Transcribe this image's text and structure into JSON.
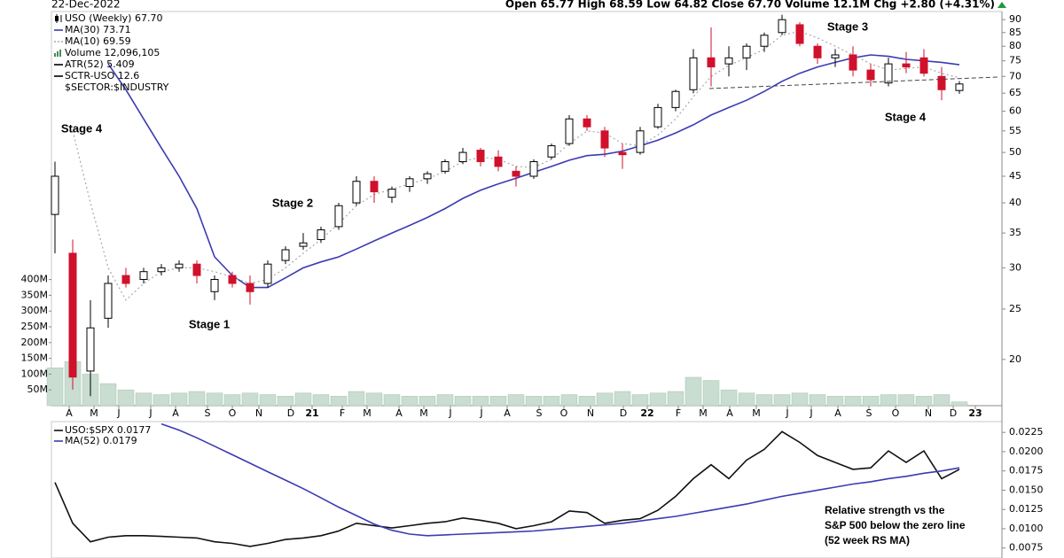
{
  "header": {
    "date": "22-Dec-2022",
    "quote": "Open 65.77 High 68.59 Low 64.82 Close 67.70 Volume 12.1M Chg +2.80 (+4.31%)"
  },
  "chart_data": [
    {
      "type": "candlestick",
      "name": "USO (Weekly) 67.70",
      "log_scale": true,
      "up_color": "#000000",
      "down_color": "#d0112b",
      "ylim": [
        16.3,
        93.3
      ],
      "yticks": [
        20,
        25,
        30,
        35,
        40,
        45,
        50,
        55,
        60,
        65,
        70,
        75,
        80,
        85,
        90
      ],
      "xlim": [
        -0.2,
        53.4
      ],
      "xticks": [
        {
          "value": 0.8,
          "label": "A"
        },
        {
          "value": 2.2,
          "label": "M"
        },
        {
          "value": 3.6,
          "label": "J"
        },
        {
          "value": 5.4,
          "label": "J"
        },
        {
          "value": 6.8,
          "label": "A"
        },
        {
          "value": 8.6,
          "label": "S"
        },
        {
          "value": 10,
          "label": "O"
        },
        {
          "value": 11.5,
          "label": "N"
        },
        {
          "value": 13.3,
          "label": "D"
        },
        {
          "value": 14.5,
          "label": "21"
        },
        {
          "value": 16.2,
          "label": "F"
        },
        {
          "value": 17.6,
          "label": "M"
        },
        {
          "value": 19.4,
          "label": "A"
        },
        {
          "value": 20.8,
          "label": "M"
        },
        {
          "value": 22.3,
          "label": "J"
        },
        {
          "value": 24.05,
          "label": "J"
        },
        {
          "value": 25.5,
          "label": "A"
        },
        {
          "value": 27.3,
          "label": "S"
        },
        {
          "value": 28.7,
          "label": "O"
        },
        {
          "value": 30.2,
          "label": "N"
        },
        {
          "value": 32.05,
          "label": "D"
        },
        {
          "value": 33.4,
          "label": "22"
        },
        {
          "value": 35.15,
          "label": "F"
        },
        {
          "value": 36.55,
          "label": "M"
        },
        {
          "value": 38.05,
          "label": "A"
        },
        {
          "value": 39.55,
          "label": "M"
        },
        {
          "value": 41.3,
          "label": "J"
        },
        {
          "value": 42.65,
          "label": "J"
        },
        {
          "value": 44.15,
          "label": "A"
        },
        {
          "value": 45.9,
          "label": "S"
        },
        {
          "value": 47.4,
          "label": "O"
        },
        {
          "value": 49.25,
          "label": "N"
        },
        {
          "value": 50.65,
          "label": "D"
        },
        {
          "value": 51.9,
          "label": "23"
        }
      ],
      "open": [
        38,
        32,
        19,
        24,
        29,
        28.5,
        29.5,
        30,
        30.5,
        27,
        29,
        28,
        28,
        31,
        33,
        34,
        36,
        40,
        44,
        41,
        43,
        44.5,
        46,
        48,
        50.5,
        49,
        46,
        45,
        49,
        52,
        58,
        55,
        50,
        50,
        56,
        61,
        66,
        76,
        74,
        76,
        80,
        85,
        88,
        80,
        76,
        77,
        72,
        68,
        74,
        76,
        70,
        65.77
      ],
      "high": [
        48,
        34,
        26,
        29,
        30,
        30,
        30.5,
        31,
        31,
        29,
        29.5,
        29,
        31,
        33,
        35,
        36,
        40,
        45,
        45,
        43,
        45,
        46,
        48.5,
        51,
        51,
        50.5,
        47,
        48.5,
        52,
        59,
        59,
        56,
        52,
        56,
        62,
        66,
        79,
        87,
        80,
        81,
        85,
        92,
        89,
        81,
        79,
        80,
        74,
        76,
        78,
        79,
        73,
        68.59
      ],
      "low": [
        32,
        17.5,
        17,
        23,
        27.5,
        28,
        29,
        29.5,
        28,
        26,
        27.5,
        25.5,
        27.5,
        30.5,
        32.5,
        33.5,
        35.5,
        39.5,
        40,
        40,
        42,
        43.5,
        45.5,
        47.5,
        47,
        46,
        43,
        44.5,
        48.5,
        51.5,
        55,
        49,
        46.5,
        49.5,
        55.5,
        60,
        65,
        67,
        70,
        72,
        78,
        84,
        80,
        74,
        73,
        70,
        67,
        67,
        71,
        70,
        63,
        64.82
      ],
      "close": [
        45,
        18.5,
        23,
        28,
        28,
        29.5,
        30,
        30.5,
        29,
        28.5,
        28,
        27,
        30.5,
        32.5,
        33.5,
        35.5,
        39.5,
        44,
        42,
        42.5,
        44.5,
        45.5,
        48,
        50,
        48,
        47,
        45,
        48,
        51.5,
        58,
        56,
        51,
        49.5,
        55,
        61,
        65.5,
        76,
        73,
        76,
        80,
        84,
        90,
        81,
        76,
        77,
        72,
        69,
        74,
        73,
        71,
        66,
        67.7
      ],
      "series": [
        {
          "name": "MA(30) 73.71",
          "color": "#3b3bb3",
          "dash": false,
          "values": [
            null,
            null,
            null,
            74,
            66,
            58,
            51,
            45,
            39,
            31.5,
            29,
            27.5,
            27.5,
            28.7,
            30,
            30.8,
            31.5,
            32.6,
            33.8,
            35,
            36.2,
            37.5,
            39,
            40.8,
            42.3,
            43.5,
            44.6,
            45.8,
            47,
            48.3,
            49.3,
            49.6,
            50.3,
            51.5,
            52.8,
            54.5,
            56.5,
            59,
            61,
            63,
            65.5,
            68.5,
            71,
            73,
            74.5,
            76,
            77,
            76.5,
            75.5,
            75,
            74.5,
            73.71
          ]
        },
        {
          "name": "MA(10) 69.59",
          "color": "#a8a8a8",
          "dash": true,
          "values": [
            null,
            55,
            40,
            30,
            26,
            28,
            29.5,
            30,
            30,
            29.5,
            28.8,
            28,
            28.5,
            30,
            32,
            34,
            36.5,
            39.5,
            41.5,
            42.5,
            43.5,
            44.5,
            46,
            48,
            49,
            48.5,
            47,
            46.8,
            48.5,
            52,
            55,
            54.5,
            52,
            51.5,
            54,
            58,
            64,
            70,
            73.5,
            76,
            79,
            84,
            85.5,
            83,
            80,
            77,
            74,
            72,
            72.5,
            73,
            71,
            69.59
          ]
        }
      ],
      "volume": {
        "name": "Volume 12,096,105",
        "color": "#c9ddd0",
        "ylim": [
          0,
          1250
        ],
        "yticks": [
          {
            "value": 50,
            "label": "50M"
          },
          {
            "value": 100,
            "label": "100M"
          },
          {
            "value": 150,
            "label": "150M"
          },
          {
            "value": 200,
            "label": "200M"
          },
          {
            "value": 250,
            "label": "250M"
          },
          {
            "value": 300,
            "label": "300M"
          },
          {
            "value": 350,
            "label": "350M"
          },
          {
            "value": 400,
            "label": "400M"
          }
        ],
        "values": [
          120,
          140,
          100,
          70,
          50,
          40,
          35,
          40,
          45,
          40,
          35,
          40,
          35,
          30,
          40,
          35,
          30,
          45,
          40,
          35,
          30,
          30,
          35,
          30,
          30,
          30,
          35,
          30,
          30,
          35,
          30,
          40,
          45,
          35,
          40,
          45,
          90,
          80,
          50,
          40,
          35,
          35,
          40,
          35,
          30,
          30,
          30,
          35,
          35,
          30,
          35,
          12.1
        ]
      },
      "legend_extra": [
        "ATR(52) 5.409",
        "SCTR-USO 12.6",
        "$SECTOR:$INDUSTRY"
      ],
      "annotations": [
        "Stage 4",
        "Stage 1",
        "Stage 2",
        "Stage 3",
        "Stage 4"
      ]
    },
    {
      "type": "line",
      "ylim": [
        0.0062,
        0.0239
      ],
      "yticks": [
        0.0075,
        {
          "value": 0.01,
          "label": "0.0100"
        },
        0.0125,
        {
          "value": 0.015,
          "label": "0.0150"
        },
        0.0175,
        {
          "value": 0.02,
          "label": "0.0200"
        },
        0.0225
      ],
      "xlim": [
        -0.2,
        53.4
      ],
      "series": [
        {
          "name": "USO:$SPX 0.0177",
          "color": "#111111",
          "dash": false,
          "values": [
            0.016,
            0.0107,
            0.0083,
            0.0089,
            0.0091,
            0.0091,
            0.009,
            0.0089,
            0.0088,
            0.0083,
            0.0081,
            0.0077,
            0.0081,
            0.0086,
            0.0088,
            0.0091,
            0.0097,
            0.0107,
            0.0104,
            0.0101,
            0.0104,
            0.0107,
            0.0109,
            0.0114,
            0.0111,
            0.0107,
            0.01,
            0.0104,
            0.0109,
            0.0123,
            0.0121,
            0.0107,
            0.0111,
            0.0113,
            0.0124,
            0.0142,
            0.0165,
            0.0183,
            0.0165,
            0.0189,
            0.0203,
            0.0226,
            0.0212,
            0.0195,
            0.0186,
            0.0177,
            0.0179,
            0.0201,
            0.0186,
            0.0201,
            0.0165,
            0.0177
          ]
        },
        {
          "name": "MA(52) 0.0179",
          "color": "#3b3bb3",
          "dash": false,
          "values": [
            null,
            null,
            null,
            null,
            null,
            null,
            0.0236,
            0.0228,
            0.0218,
            0.0207,
            0.0196,
            0.0185,
            0.0174,
            0.0163,
            0.0152,
            0.014,
            0.0128,
            0.0117,
            0.0106,
            0.0098,
            0.0093,
            0.0091,
            0.0092,
            0.0093,
            0.0094,
            0.0095,
            0.0096,
            0.0097,
            0.0099,
            0.0101,
            0.0103,
            0.0105,
            0.0107,
            0.011,
            0.0113,
            0.0116,
            0.012,
            0.0124,
            0.0128,
            0.0132,
            0.0137,
            0.0142,
            0.0146,
            0.015,
            0.0154,
            0.0158,
            0.0161,
            0.0165,
            0.0168,
            0.0172,
            0.0175,
            0.0179
          ]
        }
      ],
      "annotation": [
        "Relative strength vs the",
        "S&P 500 below the zero line",
        "(52 week RS MA)"
      ]
    }
  ]
}
